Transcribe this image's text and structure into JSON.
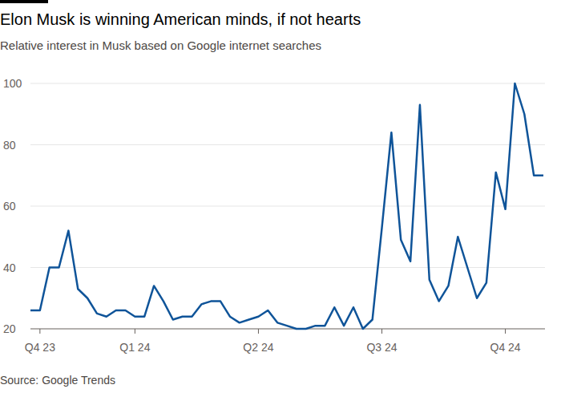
{
  "chart_data": {
    "type": "line",
    "title": "Elon Musk is winning American minds, if not hearts",
    "subtitle": "Relative interest in Musk based on Google internet searches",
    "source": "Source: Google Trends",
    "categories": [
      null,
      "Q4 23",
      null,
      null,
      null,
      null,
      null,
      null,
      null,
      null,
      null,
      "Q1 24",
      null,
      null,
      null,
      null,
      null,
      null,
      null,
      null,
      null,
      null,
      null,
      null,
      "Q2 24",
      null,
      null,
      null,
      null,
      null,
      null,
      null,
      null,
      null,
      null,
      null,
      null,
      "Q3 24",
      null,
      null,
      null,
      null,
      null,
      null,
      null,
      null,
      null,
      null,
      null,
      null,
      "Q4 24",
      null,
      null,
      null,
      null
    ],
    "values": [
      26,
      26,
      40,
      40,
      52,
      33,
      30,
      25,
      24,
      26,
      26,
      24,
      24,
      34,
      29,
      23,
      24,
      24,
      28,
      29,
      29,
      24,
      22,
      23,
      24,
      26,
      22,
      21,
      20,
      20,
      21,
      21,
      27,
      21,
      27,
      20,
      23,
      53,
      84,
      49,
      42,
      93,
      36,
      29,
      34,
      50,
      40,
      30,
      35,
      71,
      59,
      100,
      90,
      70,
      70
    ],
    "color": "#0f5499",
    "ylim": [
      20,
      100
    ],
    "yticks": [
      20,
      40,
      60,
      80,
      100
    ],
    "grid": true
  }
}
